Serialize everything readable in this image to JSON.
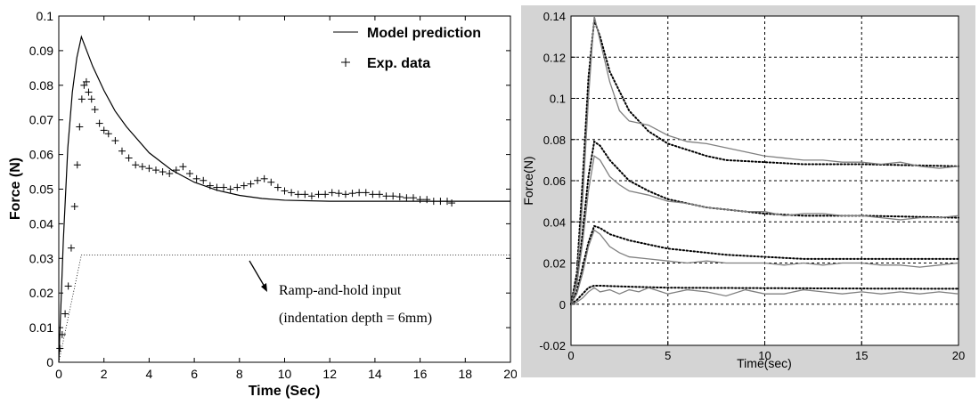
{
  "chart_data": [
    {
      "type": "line",
      "title": "",
      "xlabel": "Time (Sec)",
      "ylabel": "Force (N)",
      "xlim": [
        0,
        20
      ],
      "ylim": [
        0,
        0.1
      ],
      "xticks": [
        0,
        2,
        4,
        6,
        8,
        10,
        12,
        14,
        16,
        18,
        20
      ],
      "yticks": [
        0,
        0.01,
        0.02,
        0.03,
        0.04,
        0.05,
        0.06,
        0.07,
        0.08,
        0.09,
        0.1
      ],
      "grid": false,
      "legend_position": "top-right",
      "legend": [
        "Model prediction",
        "Exp. data"
      ],
      "annotations": [
        "Ramp-and-hold input",
        "(indentation depth = 6mm)"
      ],
      "series": [
        {
          "name": "Model prediction",
          "style": "solid",
          "x": [
            0,
            0.2,
            0.4,
            0.6,
            0.8,
            1.0,
            1.5,
            2.0,
            2.5,
            3.0,
            4.0,
            5.0,
            6.0,
            7.0,
            8.0,
            9.0,
            10.0,
            12.0,
            15.0,
            20.0
          ],
          "y": [
            0,
            0.035,
            0.062,
            0.078,
            0.088,
            0.094,
            0.0855,
            0.0785,
            0.0725,
            0.068,
            0.0605,
            0.0555,
            0.052,
            0.0497,
            0.0482,
            0.0473,
            0.0468,
            0.0465,
            0.0465,
            0.0465
          ]
        },
        {
          "name": "Exp. data",
          "style": "plus",
          "x": [
            0.05,
            0.15,
            0.28,
            0.42,
            0.55,
            0.7,
            0.82,
            0.92,
            1.02,
            1.12,
            1.22,
            1.32,
            1.45,
            1.6,
            1.8,
            2.0,
            2.2,
            2.5,
            2.8,
            3.1,
            3.4,
            3.7,
            4.0,
            4.3,
            4.6,
            4.9,
            5.2,
            5.5,
            5.8,
            6.1,
            6.4,
            6.7,
            7.0,
            7.3,
            7.6,
            7.9,
            8.2,
            8.5,
            8.8,
            9.1,
            9.4,
            9.7,
            10.0,
            10.3,
            10.6,
            10.9,
            11.2,
            11.5,
            11.8,
            12.1,
            12.4,
            12.7,
            13.0,
            13.3,
            13.6,
            13.9,
            14.2,
            14.5,
            14.8,
            15.1,
            15.4,
            15.7,
            16.0,
            16.3,
            16.6,
            16.9,
            17.2,
            17.4
          ],
          "y": [
            0.004,
            0.008,
            0.014,
            0.022,
            0.033,
            0.045,
            0.057,
            0.068,
            0.076,
            0.08,
            0.081,
            0.078,
            0.076,
            0.073,
            0.069,
            0.067,
            0.066,
            0.064,
            0.061,
            0.059,
            0.057,
            0.0565,
            0.056,
            0.0555,
            0.055,
            0.0545,
            0.0555,
            0.0565,
            0.0545,
            0.053,
            0.0525,
            0.051,
            0.0505,
            0.0505,
            0.05,
            0.0505,
            0.051,
            0.0515,
            0.0525,
            0.053,
            0.052,
            0.0505,
            0.0495,
            0.049,
            0.0485,
            0.0485,
            0.048,
            0.0485,
            0.0485,
            0.049,
            0.0488,
            0.0485,
            0.0488,
            0.049,
            0.049,
            0.0485,
            0.0485,
            0.048,
            0.048,
            0.0478,
            0.0475,
            0.0475,
            0.047,
            0.047,
            0.0465,
            0.0465,
            0.0465,
            0.046
          ]
        },
        {
          "name": "Ramp-and-hold input",
          "style": "dotted",
          "x": [
            0,
            1.0,
            20
          ],
          "y": [
            0,
            0.031,
            0.031
          ]
        }
      ]
    },
    {
      "type": "line",
      "title": "",
      "xlabel": "Time(sec)",
      "ylabel": "Force(N)",
      "xlim": [
        0,
        20
      ],
      "ylim": [
        -0.02,
        0.14
      ],
      "xticks": [
        0,
        5,
        10,
        15,
        20
      ],
      "yticks": [
        -0.02,
        0,
        0.02,
        0.04,
        0.06,
        0.08,
        0.1,
        0.12,
        0.14
      ],
      "grid": true,
      "background": "#d4d4d4",
      "series": [
        {
          "style": "dotted",
          "color": "#000000",
          "x": [
            0,
            0.3,
            0.6,
            0.9,
            1.2,
            1.5,
            2.0,
            3.0,
            4.0,
            5.0,
            6.0,
            7.0,
            8.0,
            10.0,
            12.0,
            15.0,
            20.0
          ],
          "y": [
            0,
            0.015,
            0.06,
            0.11,
            0.138,
            0.13,
            0.113,
            0.094,
            0.084,
            0.078,
            0.075,
            0.072,
            0.07,
            0.069,
            0.068,
            0.068,
            0.067
          ]
        },
        {
          "style": "solid",
          "color": "#808080",
          "x": [
            0,
            0.3,
            0.6,
            0.9,
            1.2,
            1.5,
            2.0,
            2.5,
            3.0,
            4.0,
            5.0,
            6.0,
            7.0,
            8.0,
            9.0,
            10.0,
            11.0,
            12.0,
            13.0,
            14.0,
            15.0,
            16.0,
            17.0,
            18.0,
            19.0,
            20.0
          ],
          "y": [
            0,
            0.012,
            0.05,
            0.1,
            0.14,
            0.128,
            0.108,
            0.094,
            0.089,
            0.087,
            0.082,
            0.079,
            0.078,
            0.076,
            0.074,
            0.072,
            0.071,
            0.07,
            0.07,
            0.069,
            0.069,
            0.068,
            0.069,
            0.067,
            0.066,
            0.067
          ]
        },
        {
          "style": "dotted",
          "color": "#000000",
          "x": [
            0,
            0.3,
            0.6,
            0.9,
            1.2,
            1.5,
            2.0,
            3.0,
            4.0,
            5.0,
            6.0,
            7.0,
            8.0,
            10.0,
            12.0,
            15.0,
            20.0
          ],
          "y": [
            0,
            0.01,
            0.035,
            0.062,
            0.079,
            0.077,
            0.07,
            0.06,
            0.055,
            0.051,
            0.049,
            0.047,
            0.046,
            0.044,
            0.043,
            0.043,
            0.042
          ]
        },
        {
          "style": "solid",
          "color": "#808080",
          "x": [
            0,
            0.3,
            0.6,
            0.9,
            1.2,
            1.5,
            2.0,
            2.5,
            3.0,
            4.0,
            5.0,
            6.0,
            7.0,
            8.0,
            9.0,
            10.0,
            11.0,
            12.0,
            13.0,
            14.0,
            15.0,
            16.0,
            17.0,
            18.0,
            19.0,
            20.0
          ],
          "y": [
            0,
            0.01,
            0.03,
            0.055,
            0.072,
            0.07,
            0.062,
            0.058,
            0.055,
            0.053,
            0.05,
            0.049,
            0.047,
            0.046,
            0.045,
            0.045,
            0.043,
            0.044,
            0.044,
            0.043,
            0.043,
            0.042,
            0.041,
            0.042,
            0.042,
            0.043
          ]
        },
        {
          "style": "dotted",
          "color": "#000000",
          "x": [
            0,
            0.3,
            0.6,
            0.9,
            1.2,
            1.5,
            2.0,
            3.0,
            4.0,
            5.0,
            6.0,
            7.0,
            8.0,
            10.0,
            12.0,
            15.0,
            20.0
          ],
          "y": [
            0,
            0.006,
            0.018,
            0.03,
            0.038,
            0.037,
            0.034,
            0.031,
            0.029,
            0.027,
            0.026,
            0.025,
            0.024,
            0.023,
            0.022,
            0.022,
            0.022
          ]
        },
        {
          "style": "solid",
          "color": "#808080",
          "x": [
            0,
            0.3,
            0.6,
            0.9,
            1.2,
            1.5,
            2.0,
            2.5,
            3.0,
            4.0,
            5.0,
            6.0,
            7.0,
            8.0,
            9.0,
            10.0,
            11.0,
            12.0,
            13.0,
            14.0,
            15.0,
            16.0,
            17.0,
            18.0,
            19.0,
            20.0
          ],
          "y": [
            0,
            0.005,
            0.015,
            0.028,
            0.036,
            0.034,
            0.028,
            0.025,
            0.023,
            0.022,
            0.021,
            0.02,
            0.021,
            0.02,
            0.02,
            0.02,
            0.019,
            0.02,
            0.019,
            0.02,
            0.02,
            0.019,
            0.019,
            0.018,
            0.019,
            0.02
          ]
        },
        {
          "style": "dotted",
          "color": "#000000",
          "x": [
            0,
            0.3,
            0.6,
            0.9,
            1.2,
            1.5,
            2.0,
            3.0,
            5.0,
            10.0,
            15.0,
            20.0
          ],
          "y": [
            0,
            0.002,
            0.005,
            0.008,
            0.009,
            0.009,
            0.0088,
            0.0085,
            0.008,
            0.0078,
            0.0076,
            0.0075
          ]
        },
        {
          "style": "solid",
          "color": "#808080",
          "x": [
            0,
            0.3,
            0.6,
            0.9,
            1.2,
            1.5,
            2.0,
            2.5,
            3.0,
            3.5,
            4.0,
            5.0,
            6.0,
            7.0,
            8.0,
            9.0,
            10.0,
            11.0,
            12.0,
            13.0,
            14.0,
            15.0,
            16.0,
            17.0,
            18.0,
            19.0,
            20.0
          ],
          "y": [
            0,
            0.001,
            0.003,
            0.006,
            0.008,
            0.006,
            0.007,
            0.005,
            0.007,
            0.006,
            0.008,
            0.005,
            0.007,
            0.006,
            0.004,
            0.007,
            0.005,
            0.005,
            0.007,
            0.006,
            0.005,
            0.006,
            0.005,
            0.006,
            0.005,
            0.006,
            0.005
          ]
        }
      ]
    }
  ]
}
